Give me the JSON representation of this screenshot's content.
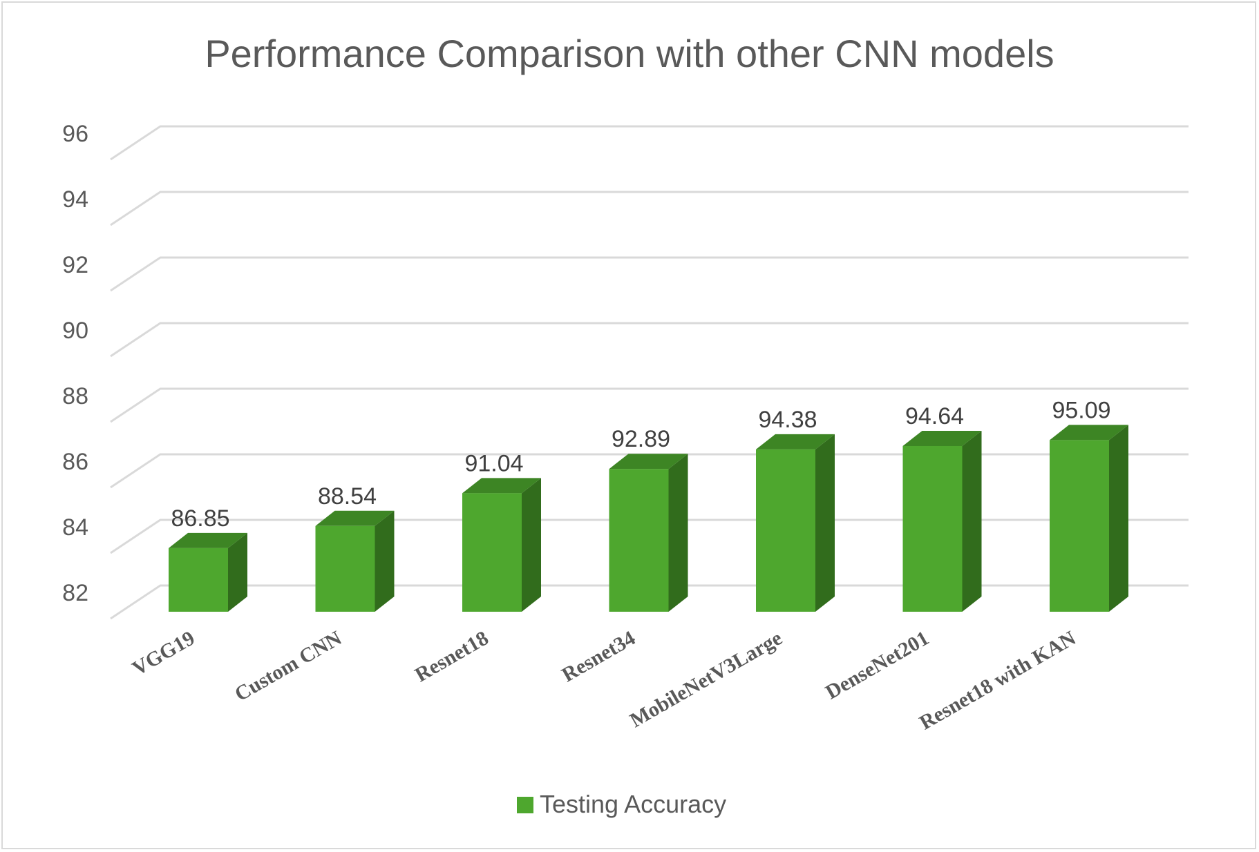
{
  "chart_data": {
    "type": "bar",
    "title": "Performance Comparison with other CNN models",
    "categories": [
      "VGG19",
      "Custom CNN",
      "Resnet18",
      "Resnet34",
      "MobileNetV3Large",
      "DenseNet201",
      "Resnet18 with KAN"
    ],
    "series": [
      {
        "name": "Testing Accuracy",
        "values": [
          86.85,
          88.54,
          91.04,
          92.89,
          94.38,
          94.64,
          95.09
        ],
        "color": "#4ea72e"
      }
    ],
    "data_labels": [
      "86.85",
      "88.54",
      "91.04",
      "92.89",
      "94.38",
      "94.64",
      "95.09"
    ],
    "yticks": [
      "82",
      "84",
      "86",
      "88",
      "90",
      "92",
      "94",
      "96"
    ],
    "ylim": [
      82,
      96
    ],
    "xlabel": "",
    "ylabel": "",
    "grid": true,
    "legend": "bottom",
    "style": "3d-column"
  },
  "colors": {
    "bar_front": "#4ea72e",
    "bar_side": "#316c1c",
    "bar_top": "#3d8524",
    "grid": "#d9d9d9"
  }
}
